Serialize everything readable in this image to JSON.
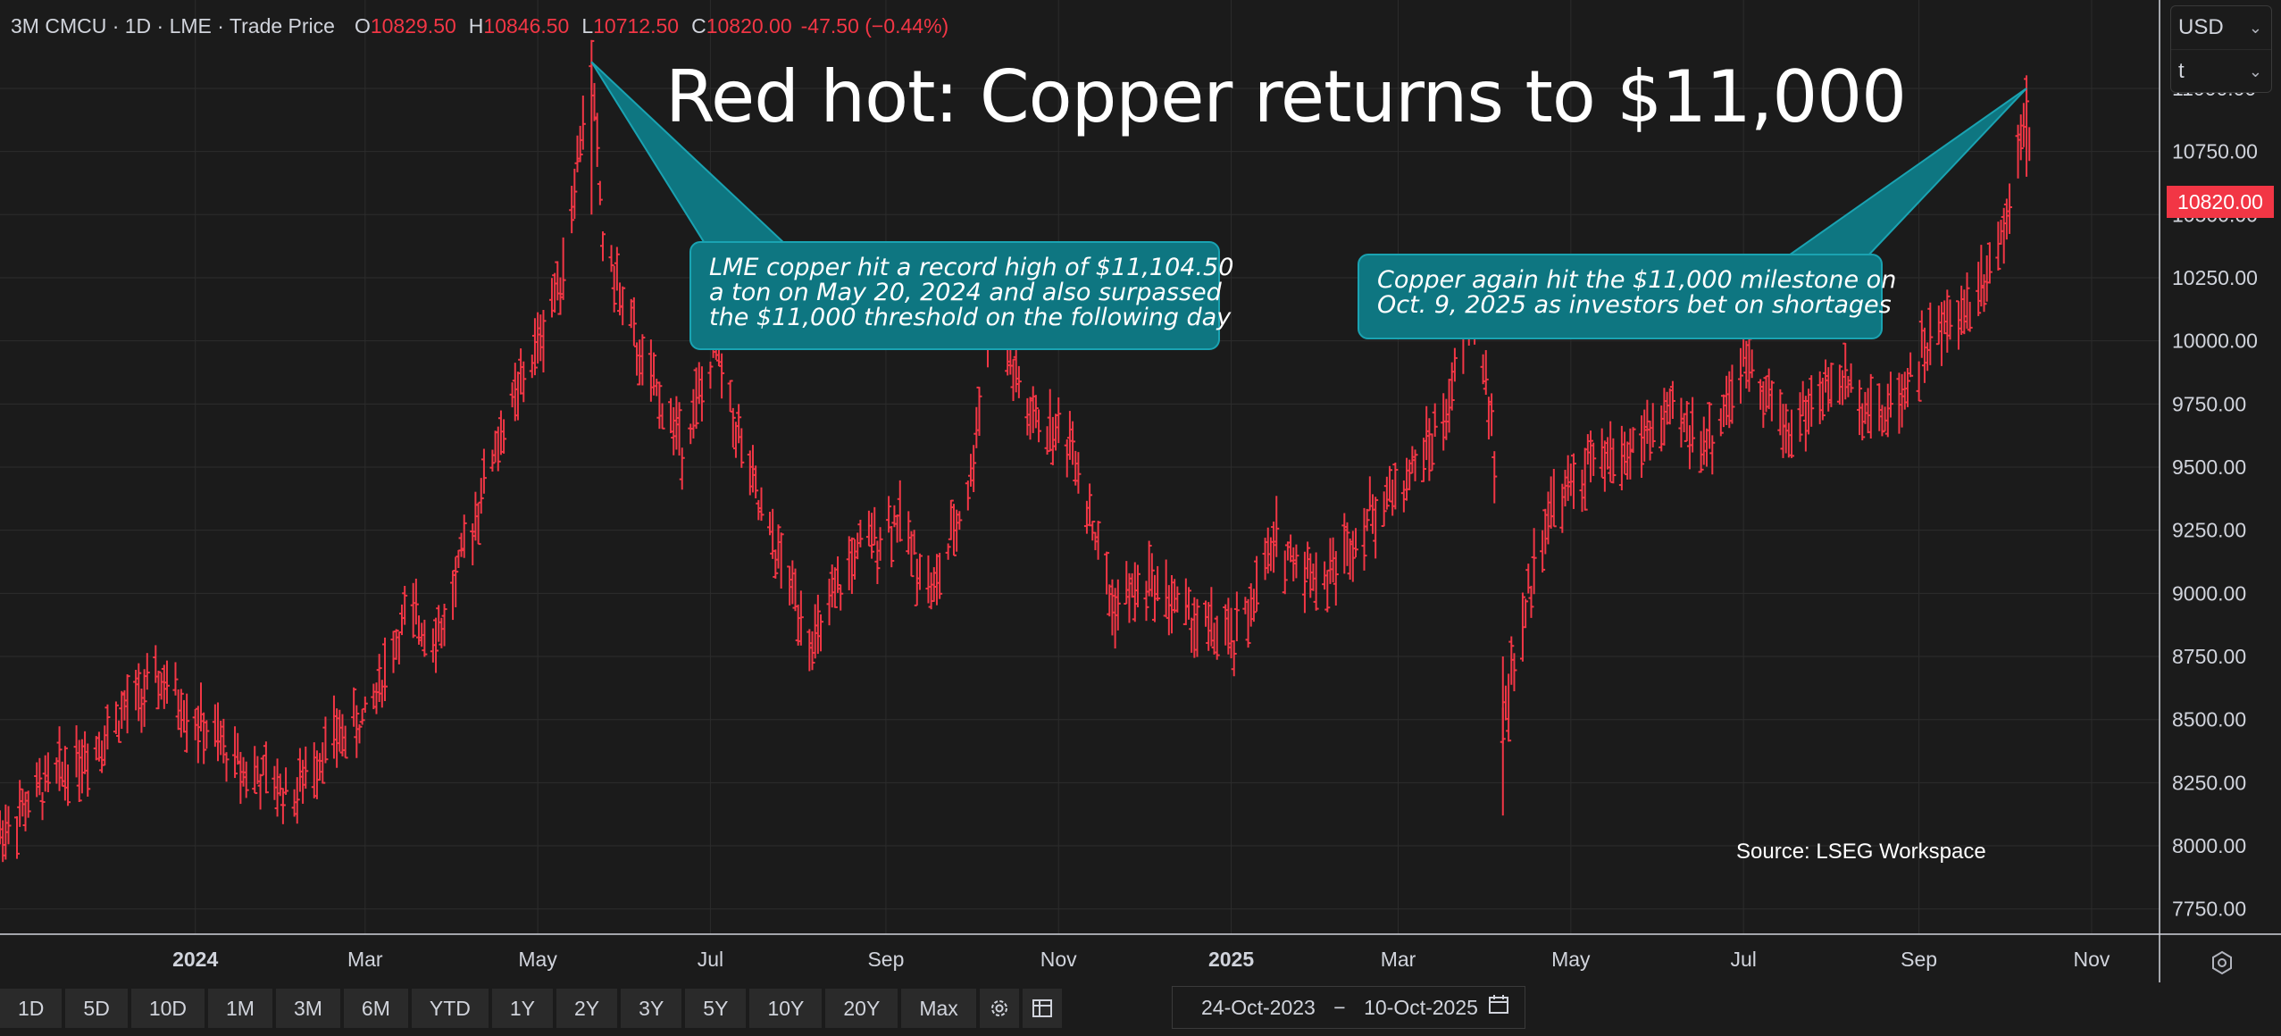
{
  "legend": {
    "symbol": "3M CMCU · 1D · LME · Trade Price",
    "open_label": "O",
    "open": "10829.50",
    "high_label": "H",
    "high": "10846.50",
    "low_label": "L",
    "low": "10712.50",
    "close_label": "C",
    "close": "10820.00",
    "change": "-47.50 (−0.44%)"
  },
  "title": "Red hot: Copper returns to $11,000",
  "callout1": {
    "lines": [
      "LME copper hit a record high of $11,104.50",
      "a ton on May 20, 2024 and also surpassed",
      "the $11,000 threshold on the following day"
    ]
  },
  "callout2": {
    "lines": [
      "Copper again hit the $11,000 milestone on",
      "Oct. 9, 2025 as investors bet on shortages"
    ]
  },
  "source": "Source: LSEG Workspace",
  "currency": {
    "value": "USD",
    "unit": "t"
  },
  "last_price": "10820.00",
  "toolbar": {
    "ranges": [
      "1D",
      "5D",
      "10D",
      "1M",
      "3M",
      "6M",
      "YTD",
      "1Y",
      "2Y",
      "3Y",
      "5Y",
      "10Y",
      "20Y",
      "Max"
    ],
    "settings_icon": "gear-icon",
    "table_icon": "table-icon"
  },
  "date_range": {
    "start": "24-Oct-2023",
    "separator": "−",
    "end": "10-Oct-2025",
    "icon": "calendar-icon"
  },
  "colors": {
    "background": "#1b1b1b",
    "bars": "#f23645",
    "callout": "#0e7681",
    "grid": "#2c2c2c"
  },
  "chart_data": {
    "type": "bar",
    "subtype": "ohlc",
    "title": "Red hot: Copper returns to $11,000",
    "xlabel": "",
    "ylabel": "",
    "x_tick_labels": [
      "2024",
      "Mar",
      "May",
      "Jul",
      "Sep",
      "Nov",
      "2025",
      "Mar",
      "May",
      "Jul",
      "Sep",
      "Nov"
    ],
    "y_tick_labels": [
      "7750.00",
      "8000.00",
      "8250.00",
      "8500.00",
      "8750.00",
      "9000.00",
      "9250.00",
      "9500.00",
      "9750.00",
      "10000.00",
      "10250.00",
      "10500.00",
      "10750.00",
      "11000.00"
    ],
    "ylim": [
      7650,
      11350
    ],
    "xlim": [
      "2023-10-24",
      "2025-11-25"
    ],
    "grid": true,
    "last_close": 10820.0,
    "series": [
      {
        "dates": [
          "2023-10-24",
          "2023-11-10",
          "2023-11-27",
          "2023-12-08",
          "2023-12-20",
          "2024-01-05",
          "2024-01-19",
          "2024-02-05",
          "2024-02-16",
          "2024-03-01",
          "2024-03-15",
          "2024-03-28",
          "2024-04-15",
          "2024-04-30",
          "2024-05-10",
          "2024-05-20",
          "2024-05-24",
          "2024-06-07",
          "2024-06-21",
          "2024-07-03",
          "2024-07-19",
          "2024-08-07",
          "2024-08-21",
          "2024-09-05",
          "2024-09-18",
          "2024-10-01",
          "2024-10-08",
          "2024-10-21",
          "2024-11-06",
          "2024-11-20",
          "2024-12-04",
          "2024-12-18",
          "2025-01-02",
          "2025-01-17",
          "2025-02-03",
          "2025-02-18",
          "2025-03-04",
          "2025-03-18",
          "2025-03-27",
          "2025-04-03",
          "2025-04-07",
          "2025-04-22",
          "2025-05-07",
          "2025-05-20",
          "2025-06-05",
          "2025-06-19",
          "2025-07-03",
          "2025-07-16",
          "2025-08-04",
          "2025-08-20",
          "2025-09-05",
          "2025-09-19",
          "2025-10-01",
          "2025-10-09",
          "2025-10-10"
        ],
        "values": [
          8050,
          8250,
          8400,
          8550,
          8650,
          8450,
          8300,
          8200,
          8400,
          8500,
          8900,
          8850,
          9550,
          9950,
          10300,
          11104.5,
          10400,
          9900,
          9600,
          9950,
          9300,
          8800,
          9150,
          9300,
          9000,
          9450,
          10150,
          9700,
          9600,
          8950,
          9050,
          8900,
          8800,
          9200,
          9050,
          9300,
          9450,
          9700,
          10150,
          9700,
          8500,
          9300,
          9500,
          9550,
          9700,
          9600,
          9950,
          9650,
          9850,
          9700,
          10000,
          10150,
          10450,
          11000,
          10820
        ]
      }
    ]
  }
}
